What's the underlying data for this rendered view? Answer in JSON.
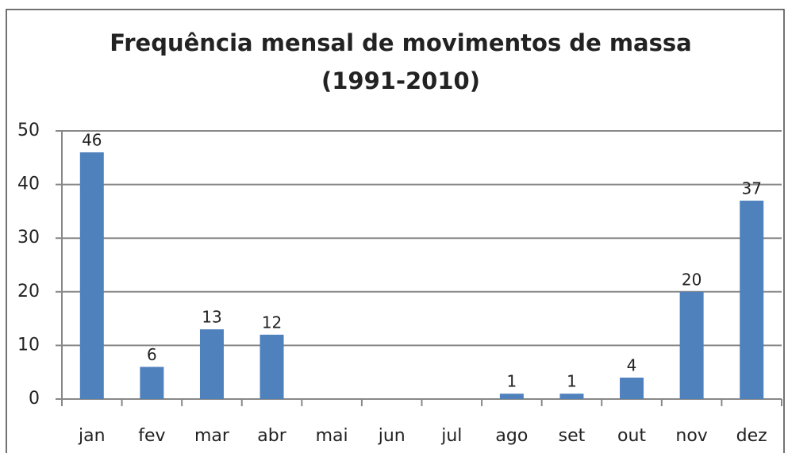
{
  "chart_data": {
    "type": "bar",
    "title": "Frequência mensal de movimentos de massa",
    "subtitle": "(1991-2010)",
    "categories": [
      "jan",
      "fev",
      "mar",
      "abr",
      "mai",
      "jun",
      "jul",
      "ago",
      "set",
      "out",
      "nov",
      "dez"
    ],
    "values": [
      46,
      6,
      13,
      12,
      0,
      0,
      0,
      1,
      1,
      4,
      20,
      37
    ],
    "color": "#4f81bd",
    "ylim": [
      0,
      50
    ],
    "yticks": [
      0,
      10,
      20,
      30,
      40,
      50
    ],
    "grid": true
  }
}
